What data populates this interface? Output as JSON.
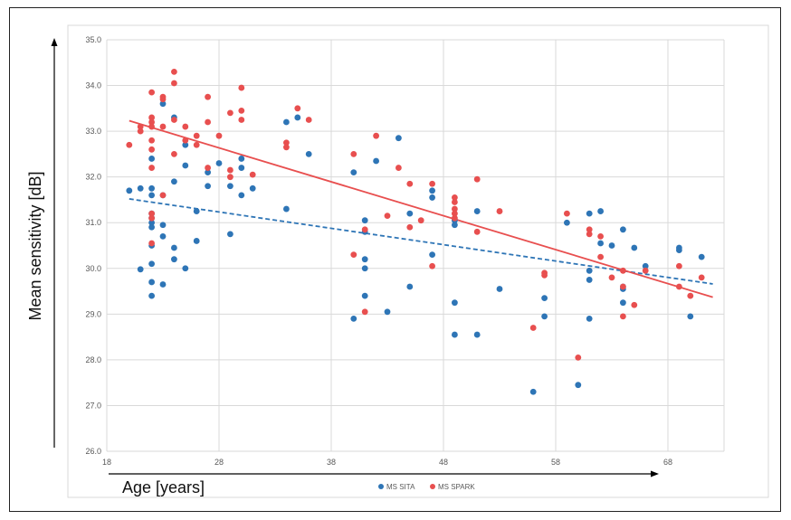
{
  "chart_data": {
    "type": "scatter",
    "title": "",
    "xlabel": "Age [years]",
    "ylabel": "Mean sensitivity [dB]",
    "xlim": [
      18,
      73
    ],
    "ylim": [
      26.0,
      35.0
    ],
    "x_ticks": [
      18,
      28,
      38,
      48,
      58,
      68
    ],
    "y_ticks": [
      "26.0",
      "27.0",
      "28.0",
      "29.0",
      "30.0",
      "31.0",
      "32.0",
      "33.0",
      "34.0",
      "35.0"
    ],
    "grid": true,
    "legend_position": "bottom",
    "series": [
      {
        "name": "MS SITA",
        "color": "#2e75b6",
        "trendline": {
          "style": "dashed",
          "x": [
            20,
            72
          ],
          "y": [
            31.52,
            29.66
          ]
        },
        "points": [
          [
            20,
            31.7
          ],
          [
            21,
            31.75
          ],
          [
            21,
            29.98
          ],
          [
            22,
            32.4
          ],
          [
            22,
            31.75
          ],
          [
            22,
            31.6
          ],
          [
            22,
            31.2
          ],
          [
            22,
            31.1
          ],
          [
            22,
            31.0
          ],
          [
            22,
            30.9
          ],
          [
            22,
            30.5
          ],
          [
            22,
            30.1
          ],
          [
            22,
            29.7
          ],
          [
            22,
            29.4
          ],
          [
            23,
            33.6
          ],
          [
            23,
            31.6
          ],
          [
            23,
            30.95
          ],
          [
            23,
            30.7
          ],
          [
            23,
            29.65
          ],
          [
            24,
            33.3
          ],
          [
            24,
            31.9
          ],
          [
            24,
            30.45
          ],
          [
            24,
            30.2
          ],
          [
            25,
            32.7
          ],
          [
            25,
            32.25
          ],
          [
            25,
            30.0
          ],
          [
            26,
            31.25
          ],
          [
            26,
            30.6
          ],
          [
            27,
            32.1
          ],
          [
            27,
            31.8
          ],
          [
            28,
            32.3
          ],
          [
            29,
            31.8
          ],
          [
            29,
            30.75
          ],
          [
            30,
            32.4
          ],
          [
            30,
            32.2
          ],
          [
            30,
            31.6
          ],
          [
            31,
            31.75
          ],
          [
            34,
            33.2
          ],
          [
            34,
            31.3
          ],
          [
            35,
            33.3
          ],
          [
            36,
            32.5
          ],
          [
            40,
            32.1
          ],
          [
            40,
            28.9
          ],
          [
            41,
            31.05
          ],
          [
            41,
            30.8
          ],
          [
            41,
            30.2
          ],
          [
            41,
            30.0
          ],
          [
            41,
            29.4
          ],
          [
            42,
            32.35
          ],
          [
            43,
            29.05
          ],
          [
            44,
            32.85
          ],
          [
            45,
            31.2
          ],
          [
            45,
            29.6
          ],
          [
            47,
            31.7
          ],
          [
            47,
            31.55
          ],
          [
            47,
            30.3
          ],
          [
            49,
            31.05
          ],
          [
            49,
            30.95
          ],
          [
            49,
            29.25
          ],
          [
            49,
            28.55
          ],
          [
            51,
            31.25
          ],
          [
            51,
            28.55
          ],
          [
            53,
            29.55
          ],
          [
            56,
            27.3
          ],
          [
            57,
            29.35
          ],
          [
            57,
            28.95
          ],
          [
            59,
            31.0
          ],
          [
            60,
            27.45
          ],
          [
            61,
            31.2
          ],
          [
            61,
            29.95
          ],
          [
            61,
            29.75
          ],
          [
            61,
            28.9
          ],
          [
            62,
            31.25
          ],
          [
            62,
            30.55
          ],
          [
            63,
            30.5
          ],
          [
            64,
            30.85
          ],
          [
            64,
            29.6
          ],
          [
            64,
            29.55
          ],
          [
            64,
            29.25
          ],
          [
            65,
            30.45
          ],
          [
            66,
            30.05
          ],
          [
            69,
            30.45
          ],
          [
            69,
            30.4
          ],
          [
            70,
            28.95
          ],
          [
            71,
            30.25
          ]
        ]
      },
      {
        "name": "MS SPARK",
        "color": "#e84f4f",
        "trendline": {
          "style": "solid",
          "x": [
            20,
            72
          ],
          "y": [
            33.23,
            29.37
          ]
        },
        "points": [
          [
            20,
            32.7
          ],
          [
            21,
            33.1
          ],
          [
            21,
            33.0
          ],
          [
            22,
            33.85
          ],
          [
            22,
            33.3
          ],
          [
            22,
            33.2
          ],
          [
            22,
            33.1
          ],
          [
            22,
            32.8
          ],
          [
            22,
            32.6
          ],
          [
            22,
            32.2
          ],
          [
            22,
            31.2
          ],
          [
            22,
            31.1
          ],
          [
            22,
            30.55
          ],
          [
            23,
            33.75
          ],
          [
            23,
            33.7
          ],
          [
            23,
            33.1
          ],
          [
            23,
            31.6
          ],
          [
            24,
            34.3
          ],
          [
            24,
            34.05
          ],
          [
            24,
            33.25
          ],
          [
            24,
            32.5
          ],
          [
            25,
            33.1
          ],
          [
            25,
            32.8
          ],
          [
            26,
            32.7
          ],
          [
            26,
            32.9
          ],
          [
            27,
            33.75
          ],
          [
            27,
            33.2
          ],
          [
            27,
            32.2
          ],
          [
            28,
            32.9
          ],
          [
            29,
            33.4
          ],
          [
            29,
            32.15
          ],
          [
            29,
            32.0
          ],
          [
            30,
            33.95
          ],
          [
            30,
            33.45
          ],
          [
            30,
            33.25
          ],
          [
            31,
            32.05
          ],
          [
            34,
            32.75
          ],
          [
            34,
            32.65
          ],
          [
            35,
            33.5
          ],
          [
            36,
            33.25
          ],
          [
            40,
            32.5
          ],
          [
            40,
            30.3
          ],
          [
            41,
            30.85
          ],
          [
            41,
            29.05
          ],
          [
            42,
            32.9
          ],
          [
            43,
            31.15
          ],
          [
            44,
            32.2
          ],
          [
            45,
            31.85
          ],
          [
            45,
            30.9
          ],
          [
            46,
            31.05
          ],
          [
            47,
            31.85
          ],
          [
            47,
            30.05
          ],
          [
            49,
            31.55
          ],
          [
            49,
            31.45
          ],
          [
            49,
            31.3
          ],
          [
            49,
            31.2
          ],
          [
            49,
            31.1
          ],
          [
            51,
            31.95
          ],
          [
            51,
            30.8
          ],
          [
            53,
            31.25
          ],
          [
            56,
            28.7
          ],
          [
            57,
            29.85
          ],
          [
            57,
            29.9
          ],
          [
            59,
            31.2
          ],
          [
            60,
            28.05
          ],
          [
            61,
            30.85
          ],
          [
            61,
            30.75
          ],
          [
            62,
            30.7
          ],
          [
            62,
            30.25
          ],
          [
            63,
            29.8
          ],
          [
            64,
            29.95
          ],
          [
            64,
            29.6
          ],
          [
            64,
            28.95
          ],
          [
            65,
            29.2
          ],
          [
            66,
            29.95
          ],
          [
            69,
            30.05
          ],
          [
            69,
            29.6
          ],
          [
            70,
            29.4
          ],
          [
            71,
            29.8
          ]
        ]
      }
    ]
  }
}
